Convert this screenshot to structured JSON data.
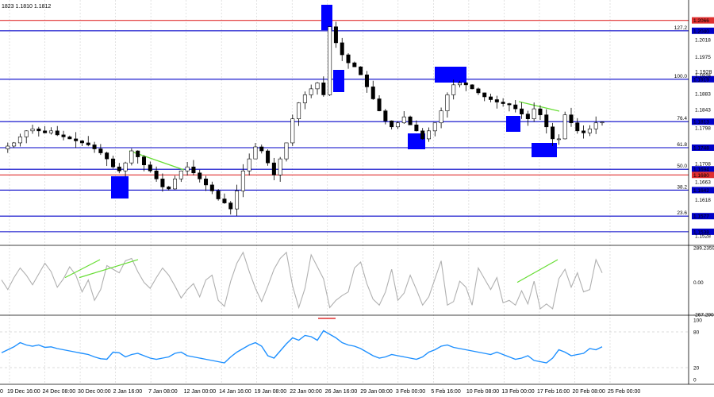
{
  "header": {
    "ohlc_text": "1823 1.1810 1.1812"
  },
  "colors": {
    "candle": "#000000",
    "fib": "#0000c8",
    "red": "#e03030",
    "blue_box": "#0000ff",
    "green": "#66dd33",
    "cci": "#b0b0b0",
    "rsi": "#1e90ff",
    "grid": "#d0d0d0",
    "label_bg": "#0000c8"
  },
  "chart_data": [
    {
      "type": "candlestick",
      "ylim": [
        1.151,
        1.2105
      ],
      "price_axis_ticks": [
        "1.2018",
        "1.1975",
        "1.1928",
        "1.1883",
        "1.1843",
        "1.1798",
        "1.1708",
        "1.1663",
        "1.1618",
        "1.1528"
      ],
      "x_labels": [
        "19 Dec 16:00",
        "24 Dec 08:00",
        "30 Dec 00:00",
        "2 Jan 16:00",
        "7 Jan 08:00",
        "12 Jan 00:00",
        "14 Jan 16:00",
        "19 Jan 08:00",
        "22 Jan 00:00",
        "26 Jan 16:00",
        "29 Jan 08:00",
        "3 Feb 00:00",
        "5 Feb 16:00",
        "10 Feb 08:00",
        "13 Feb 00:00",
        "17 Feb 16:00",
        "20 Feb 08:00",
        "25 Feb 00:00"
      ],
      "x_label_partial": "0",
      "closes_path": [
        1.1745,
        1.1752,
        1.176,
        1.1775,
        1.179,
        1.1795,
        1.179,
        1.1785,
        1.179,
        1.178,
        1.1775,
        1.177,
        1.1765,
        1.176,
        1.1755,
        1.1745,
        1.1735,
        1.172,
        1.17,
        1.169,
        1.171,
        1.174,
        1.1725,
        1.1705,
        1.169,
        1.167,
        1.165,
        1.1645,
        1.167,
        1.169,
        1.17,
        1.1685,
        1.167,
        1.1655,
        1.164,
        1.162,
        1.161,
        1.1595,
        1.164,
        1.169,
        1.172,
        1.175,
        1.174,
        1.171,
        1.168,
        1.172,
        1.176,
        1.182,
        1.186,
        1.188,
        1.1895,
        1.191,
        1.188,
        1.205,
        1.201,
        1.198,
        1.196,
        1.195,
        1.193,
        1.19,
        1.187,
        1.184,
        1.1815,
        1.18,
        1.181,
        1.1825,
        1.1805,
        1.179,
        1.177,
        1.179,
        1.181,
        1.184,
        1.188,
        1.1905,
        1.191,
        1.1905,
        1.1895,
        1.1885,
        1.1875,
        1.1868,
        1.1862,
        1.1858,
        1.1855,
        1.1845,
        1.1832,
        1.182,
        1.1845,
        1.183,
        1.18,
        1.177,
        1.177,
        1.183,
        1.181,
        1.179,
        1.1785,
        1.1795,
        1.181,
        1.1812
      ],
      "levels": [
        {
          "label": "1.2066",
          "value": 1.2066,
          "color": "red",
          "fib": ""
        },
        {
          "label": "1.2040",
          "value": 1.204,
          "color": "blue",
          "fib": "127.2"
        },
        {
          "label": "1.1919",
          "value": 1.1919,
          "color": "blue",
          "fib": "100.0"
        },
        {
          "label": "1.1813",
          "value": 1.1813,
          "color": "blue",
          "fib": "76.4"
        },
        {
          "label": "1.1748",
          "value": 1.1748,
          "color": "blue",
          "fib": "61.8"
        },
        {
          "label": "1.1694",
          "value": 1.1694,
          "color": "blue",
          "fib": "50.0"
        },
        {
          "label": "1.1680",
          "value": 1.168,
          "color": "red",
          "fib": ""
        },
        {
          "label": "1.1642",
          "value": 1.1642,
          "color": "blue",
          "fib": "38.2"
        },
        {
          "label": "1.1577",
          "value": 1.1577,
          "color": "blue",
          "fib": "23.6"
        },
        {
          "label": "1.1538",
          "value": 1.1538,
          "color": "blue",
          "fib": ""
        }
      ],
      "fib_overlap_text": "1.1928"
    },
    {
      "type": "line",
      "indicator": "CCI",
      "ylim": [
        -267.29,
        289.2359
      ],
      "tick_labels": [
        "289.2359",
        "0.00",
        "-267.290"
      ],
      "values": [
        20,
        -60,
        40,
        120,
        60,
        -20,
        70,
        160,
        90,
        -40,
        30,
        130,
        60,
        -80,
        20,
        -150,
        -60,
        140,
        110,
        80,
        180,
        200,
        90,
        0,
        -50,
        40,
        120,
        60,
        -30,
        -130,
        -60,
        -10,
        -120,
        20,
        60,
        -150,
        -200,
        10,
        160,
        250,
        90,
        -50,
        -160,
        -30,
        110,
        200,
        250,
        -30,
        -210,
        -50,
        230,
        130,
        30,
        -210,
        -150,
        -110,
        -80,
        120,
        170,
        -10,
        -140,
        -190,
        -80,
        110,
        -150,
        -90,
        60,
        -60,
        -190,
        -120,
        30,
        180,
        -190,
        -160,
        10,
        -40,
        -190,
        120,
        30,
        -60,
        40,
        -170,
        -150,
        -190,
        -70,
        -180,
        10,
        -220,
        -180,
        -220,
        30,
        110,
        -40,
        80,
        -80,
        -60,
        190,
        80
      ],
      "divergence": [
        [
          82,
          126
        ],
        [
          100,
          174
        ]
      ]
    },
    {
      "type": "line",
      "indicator": "RSI",
      "ylim": [
        0,
        100
      ],
      "tick_labels": [
        "100",
        "80",
        "20",
        "0"
      ],
      "values": [
        45,
        50,
        55,
        62,
        58,
        56,
        58,
        54,
        55,
        52,
        50,
        48,
        46,
        44,
        42,
        38,
        35,
        34,
        46,
        45,
        38,
        42,
        44,
        40,
        36,
        34,
        36,
        38,
        44,
        46,
        40,
        38,
        36,
        34,
        32,
        30,
        28,
        38,
        46,
        52,
        58,
        62,
        56,
        40,
        36,
        48,
        60,
        70,
        66,
        74,
        72,
        66,
        82,
        76,
        70,
        62,
        58,
        56,
        52,
        46,
        40,
        36,
        38,
        42,
        40,
        38,
        36,
        34,
        38,
        46,
        50,
        56,
        58,
        54,
        52,
        50,
        48,
        46,
        44,
        42,
        46,
        42,
        38,
        34,
        36,
        40,
        32,
        30,
        28,
        36,
        50,
        46,
        40,
        42,
        44,
        52,
        50,
        55
      ]
    }
  ]
}
